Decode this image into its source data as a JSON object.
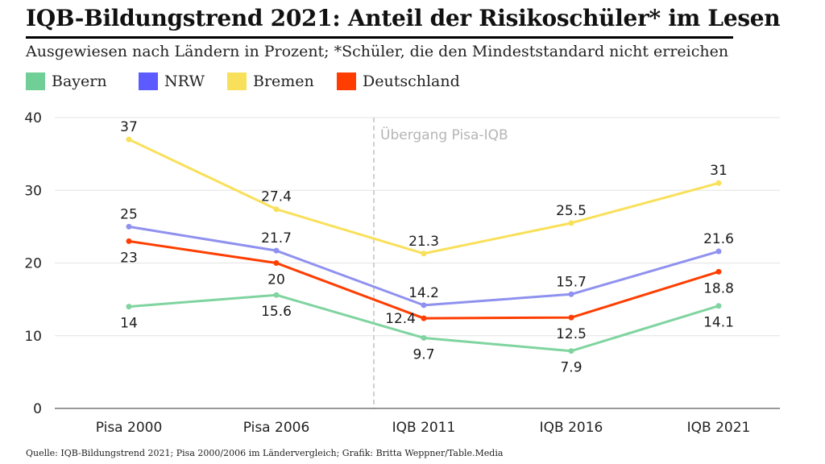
{
  "header": {
    "title": "IQB-Bildungstrend 2021: Anteil der Risikoschüler* im Lesen",
    "subtitle": "Ausgewiesen nach Ländern in Prozent; *Schüler, die den Mindeststandard nicht erreichen"
  },
  "legend": [
    {
      "label": "Bayern",
      "color": "#6fcf97"
    },
    {
      "label": "NRW",
      "color": "#5b5bff"
    },
    {
      "label": "Bremen",
      "color": "#f9e05a"
    },
    {
      "label": "Deutschland",
      "color": "#ff3d00"
    }
  ],
  "source": "Quelle: IQB-Bildungstrend 2021; Pisa 2000/2006 im Ländervergleich; Grafik: Britta Weppner/Table.Media",
  "chart_data": {
    "type": "line",
    "title": "IQB-Bildungstrend 2021: Anteil der Risikoschüler* im Lesen",
    "xlabel": "",
    "ylabel": "",
    "categories": [
      "Pisa 2000",
      "Pisa 2006",
      "IQB 2011",
      "IQB 2016",
      "IQB 2021"
    ],
    "ylim": [
      0,
      40
    ],
    "yticks": [
      0,
      10,
      20,
      30,
      40
    ],
    "grid": true,
    "annotation": {
      "text": "Übergang Pisa-IQB",
      "x_between": [
        "Pisa 2006",
        "IQB 2011"
      ]
    },
    "series": [
      {
        "name": "Bayern",
        "color": "#7fd4a0",
        "values": [
          14,
          15.6,
          9.7,
          7.9,
          14.1
        ],
        "label_pos": [
          "below",
          "below",
          "below",
          "below",
          "below"
        ]
      },
      {
        "name": "NRW",
        "color": "#8f91ef",
        "values": [
          25,
          21.7,
          14.2,
          15.7,
          21.6
        ],
        "label_pos": [
          "above",
          "above",
          "above",
          "above",
          "above"
        ]
      },
      {
        "name": "Bremen",
        "color": "#f9e05a",
        "values": [
          37,
          27.4,
          21.3,
          25.5,
          31
        ],
        "label_pos": [
          "above",
          "above",
          "above",
          "above",
          "above"
        ]
      },
      {
        "name": "Deutschland",
        "color": "#ff3d00",
        "values": [
          23,
          20,
          12.4,
          12.5,
          18.8
        ],
        "label_pos": [
          "below",
          "below",
          "left",
          "below",
          "below"
        ]
      }
    ]
  }
}
